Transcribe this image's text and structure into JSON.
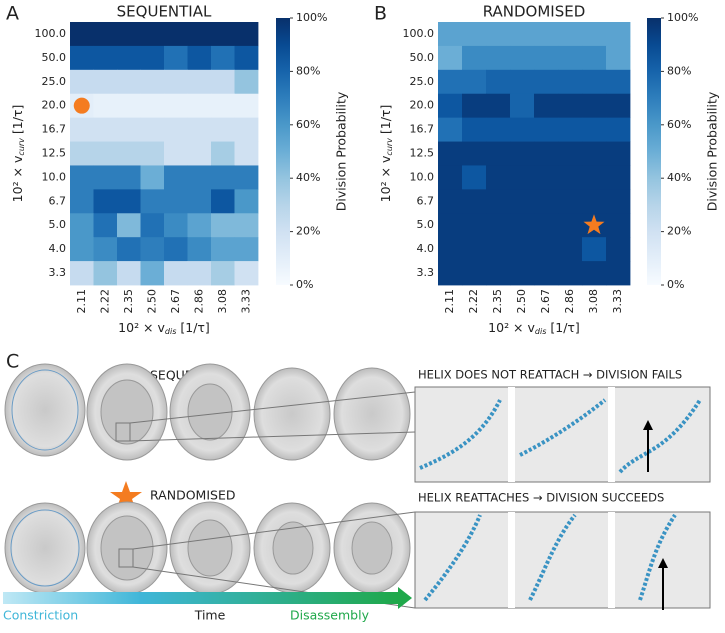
{
  "chart_data": [
    {
      "type": "heatmap",
      "panel": "A",
      "title": "SEQUENTIAL",
      "x": [
        "2.11",
        "2.22",
        "2.35",
        "2.50",
        "2.67",
        "2.86",
        "3.08",
        "3.33"
      ],
      "y": [
        "100.0",
        "50.0",
        "25.0",
        "20.0",
        "16.7",
        "12.5",
        "10.0",
        "6.7",
        "5.0",
        "4.0",
        "3.3"
      ],
      "xlabel": {
        "prefix": "10² × v",
        "sub": "dis",
        "suffix": " [1/τ]"
      },
      "ylabel": {
        "prefix": "10² × v",
        "sub": "curv",
        "suffix": " [1/τ]"
      },
      "values": [
        [
          100,
          100,
          100,
          100,
          100,
          100,
          100,
          100
        ],
        [
          85,
          85,
          85,
          85,
          75,
          85,
          75,
          85
        ],
        [
          25,
          25,
          25,
          25,
          25,
          25,
          25,
          40
        ],
        [
          10,
          8,
          8,
          8,
          8,
          8,
          8,
          8
        ],
        [
          20,
          20,
          20,
          20,
          20,
          20,
          20,
          20
        ],
        [
          30,
          30,
          30,
          30,
          20,
          20,
          35,
          20
        ],
        [
          70,
          70,
          70,
          50,
          70,
          70,
          70,
          70
        ],
        [
          70,
          85,
          85,
          70,
          70,
          70,
          85,
          60
        ],
        [
          60,
          75,
          45,
          75,
          65,
          55,
          45,
          45
        ],
        [
          60,
          65,
          75,
          70,
          75,
          65,
          55,
          55
        ],
        [
          25,
          40,
          25,
          50,
          25,
          25,
          35,
          20
        ]
      ],
      "colormap": "Blues",
      "clim": [
        0,
        100
      ],
      "colorbar_label": "Division Probability",
      "colorbar_ticks": [
        {
          "value": 0,
          "label": "0%"
        },
        {
          "value": 20,
          "label": "20%"
        },
        {
          "value": 40,
          "label": "40%"
        },
        {
          "value": 60,
          "label": "60%"
        },
        {
          "value": 80,
          "label": "80%"
        },
        {
          "value": 100,
          "label": "100%"
        }
      ],
      "marker": {
        "shape": "circle",
        "x": "2.11",
        "y": "20.0",
        "color": "#f47c20"
      }
    },
    {
      "type": "heatmap",
      "panel": "B",
      "title": "RANDOMISED",
      "x": [
        "2.11",
        "2.22",
        "2.35",
        "2.50",
        "2.67",
        "2.86",
        "3.08",
        "3.33"
      ],
      "y": [
        "100.0",
        "50.0",
        "25.0",
        "20.0",
        "16.7",
        "12.5",
        "10.0",
        "6.7",
        "5.0",
        "4.0",
        "3.3"
      ],
      "xlabel": {
        "prefix": "10² × v",
        "sub": "dis",
        "suffix": " [1/τ]"
      },
      "ylabel": {
        "prefix": "10² × v",
        "sub": "curv",
        "suffix": " [1/τ]"
      },
      "values": [
        [
          55,
          55,
          55,
          55,
          55,
          55,
          55,
          55
        ],
        [
          50,
          65,
          65,
          65,
          65,
          65,
          65,
          55
        ],
        [
          75,
          75,
          80,
          80,
          80,
          80,
          80,
          80
        ],
        [
          85,
          95,
          95,
          80,
          95,
          95,
          95,
          95
        ],
        [
          75,
          85,
          85,
          85,
          85,
          85,
          85,
          85
        ],
        [
          95,
          95,
          95,
          95,
          95,
          95,
          95,
          95
        ],
        [
          95,
          85,
          95,
          95,
          95,
          95,
          95,
          95
        ],
        [
          95,
          95,
          95,
          95,
          95,
          95,
          95,
          95
        ],
        [
          95,
          95,
          95,
          95,
          95,
          95,
          95,
          95
        ],
        [
          95,
          95,
          95,
          95,
          95,
          95,
          85,
          95
        ],
        [
          95,
          95,
          95,
          95,
          95,
          95,
          95,
          95
        ]
      ],
      "colormap": "Blues",
      "clim": [
        0,
        100
      ],
      "colorbar_label": "Division Probability",
      "colorbar_ticks": [
        {
          "value": 0,
          "label": "0%"
        },
        {
          "value": 20,
          "label": "20%"
        },
        {
          "value": 40,
          "label": "40%"
        },
        {
          "value": 60,
          "label": "60%"
        },
        {
          "value": 80,
          "label": "80%"
        },
        {
          "value": 100,
          "label": "100%"
        }
      ],
      "marker": {
        "shape": "star",
        "x": "3.08",
        "y": "5.0",
        "color": "#f47c20"
      }
    }
  ],
  "panel_c": {
    "label": "C",
    "row1_title": "SEQUENTIAL",
    "row2_title": "RANDOMISED",
    "row1_caption": "HELIX DOES NOT REATTACH → DIVISION FAILS",
    "row2_caption": "HELIX REATTACHES → DIVISION SUCCEEDS",
    "arrow_start": "Constriction",
    "arrow_mid": "Time",
    "arrow_end": "Disassembly"
  }
}
